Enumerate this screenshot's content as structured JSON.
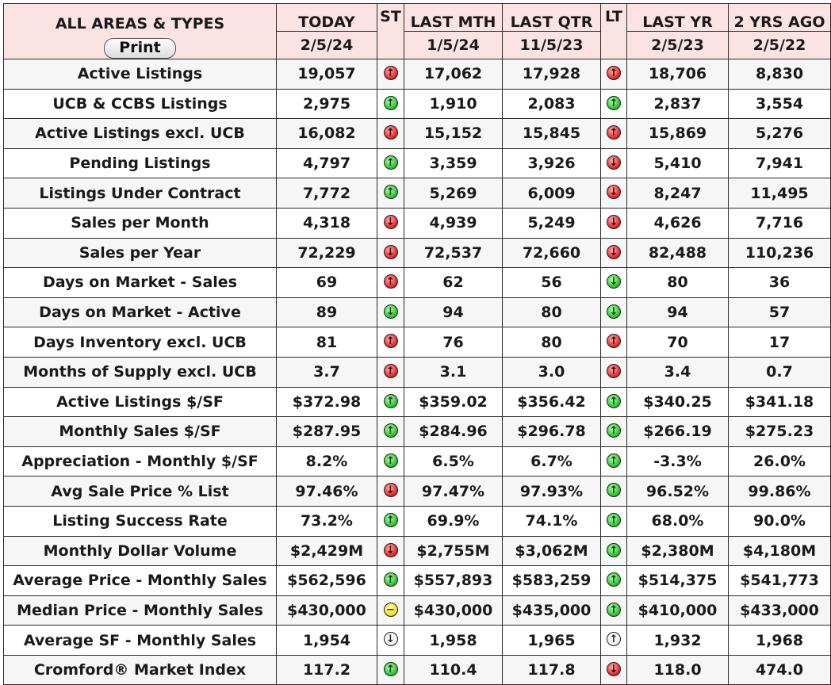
{
  "header": {
    "area_title": "ALL AREAS & TYPES",
    "print_label": "Print",
    "columns": [
      {
        "label": "TODAY",
        "date": "2/5/24"
      },
      {
        "label": "ST",
        "date": ""
      },
      {
        "label": "LAST MTH",
        "date": "1/5/24"
      },
      {
        "label": "LAST QTR",
        "date": "11/5/23"
      },
      {
        "label": "LT",
        "date": ""
      },
      {
        "label": "LAST YR",
        "date": "2/5/23"
      },
      {
        "label": "2 YRS AGO",
        "date": "2/5/22"
      }
    ]
  },
  "indicator_symbols": {
    "up-green": "↑",
    "up-red": "↑",
    "down-red": "↓",
    "down-green": "↓",
    "flat-yellow": "−",
    "up-white": "↑",
    "down-white": "↓"
  },
  "rows": [
    {
      "metric": "Active Listings",
      "today": "19,057",
      "st": "up-red",
      "last_mth": "17,062",
      "last_qtr": "17,928",
      "lt": "up-red",
      "last_yr": "18,706",
      "two_yrs": "8,830"
    },
    {
      "metric": "UCB & CCBS Listings",
      "today": "2,975",
      "st": "up-green",
      "last_mth": "1,910",
      "last_qtr": "2,083",
      "lt": "up-green",
      "last_yr": "2,837",
      "two_yrs": "3,554"
    },
    {
      "metric": "Active Listings excl. UCB",
      "today": "16,082",
      "st": "up-red",
      "last_mth": "15,152",
      "last_qtr": "15,845",
      "lt": "up-red",
      "last_yr": "15,869",
      "two_yrs": "5,276"
    },
    {
      "metric": "Pending Listings",
      "today": "4,797",
      "st": "up-green",
      "last_mth": "3,359",
      "last_qtr": "3,926",
      "lt": "down-red",
      "last_yr": "5,410",
      "two_yrs": "7,941"
    },
    {
      "metric": "Listings Under Contract",
      "today": "7,772",
      "st": "up-green",
      "last_mth": "5,269",
      "last_qtr": "6,009",
      "lt": "down-red",
      "last_yr": "8,247",
      "two_yrs": "11,495"
    },
    {
      "metric": "Sales per Month",
      "today": "4,318",
      "st": "down-red",
      "last_mth": "4,939",
      "last_qtr": "5,249",
      "lt": "down-red",
      "last_yr": "4,626",
      "two_yrs": "7,716"
    },
    {
      "metric": "Sales per Year",
      "today": "72,229",
      "st": "down-red",
      "last_mth": "72,537",
      "last_qtr": "72,660",
      "lt": "down-red",
      "last_yr": "82,488",
      "two_yrs": "110,236"
    },
    {
      "metric": "Days on Market - Sales",
      "today": "69",
      "st": "up-red",
      "last_mth": "62",
      "last_qtr": "56",
      "lt": "down-green",
      "last_yr": "80",
      "two_yrs": "36"
    },
    {
      "metric": "Days on Market - Active",
      "today": "89",
      "st": "down-green",
      "last_mth": "94",
      "last_qtr": "80",
      "lt": "down-green",
      "last_yr": "94",
      "two_yrs": "57"
    },
    {
      "metric": "Days Inventory excl. UCB",
      "today": "81",
      "st": "up-red",
      "last_mth": "76",
      "last_qtr": "80",
      "lt": "up-red",
      "last_yr": "70",
      "two_yrs": "17"
    },
    {
      "metric": "Months of Supply excl. UCB",
      "today": "3.7",
      "st": "up-red",
      "last_mth": "3.1",
      "last_qtr": "3.0",
      "lt": "up-red",
      "last_yr": "3.4",
      "two_yrs": "0.7"
    },
    {
      "metric": "Active Listings $/SF",
      "today": "$372.98",
      "st": "up-green",
      "last_mth": "$359.02",
      "last_qtr": "$356.42",
      "lt": "up-green",
      "last_yr": "$340.25",
      "two_yrs": "$341.18"
    },
    {
      "metric": "Monthly Sales $/SF",
      "today": "$287.95",
      "st": "up-green",
      "last_mth": "$284.96",
      "last_qtr": "$296.78",
      "lt": "up-green",
      "last_yr": "$266.19",
      "two_yrs": "$275.23"
    },
    {
      "metric": "Appreciation - Monthly $/SF",
      "today": "8.2%",
      "st": "up-green",
      "last_mth": "6.5%",
      "last_qtr": "6.7%",
      "lt": "up-green",
      "last_yr": "-3.3%",
      "two_yrs": "26.0%"
    },
    {
      "metric": "Avg Sale Price % List",
      "today": "97.46%",
      "st": "down-red",
      "last_mth": "97.47%",
      "last_qtr": "97.93%",
      "lt": "up-green",
      "last_yr": "96.52%",
      "two_yrs": "99.86%"
    },
    {
      "metric": "Listing Success Rate",
      "today": "73.2%",
      "st": "up-green",
      "last_mth": "69.9%",
      "last_qtr": "74.1%",
      "lt": "up-green",
      "last_yr": "68.0%",
      "two_yrs": "90.0%"
    },
    {
      "metric": "Monthly Dollar Volume",
      "today": "$2,429M",
      "st": "down-red",
      "last_mth": "$2,755M",
      "last_qtr": "$3,062M",
      "lt": "up-green",
      "last_yr": "$2,380M",
      "two_yrs": "$4,180M"
    },
    {
      "metric": "Average Price - Monthly Sales",
      "today": "$562,596",
      "st": "up-green",
      "last_mth": "$557,893",
      "last_qtr": "$583,259",
      "lt": "up-green",
      "last_yr": "$514,375",
      "two_yrs": "$541,773"
    },
    {
      "metric": "Median Price - Monthly Sales",
      "today": "$430,000",
      "st": "flat-yellow",
      "last_mth": "$430,000",
      "last_qtr": "$435,000",
      "lt": "up-green",
      "last_yr": "$410,000",
      "two_yrs": "$433,000"
    },
    {
      "metric": "Average SF - Monthly Sales",
      "today": "1,954",
      "st": "down-white",
      "last_mth": "1,958",
      "last_qtr": "1,965",
      "lt": "up-white",
      "last_yr": "1,932",
      "two_yrs": "1,968"
    },
    {
      "metric": "Cromford® Market Index",
      "today": "117.2",
      "st": "up-green",
      "last_mth": "110.4",
      "last_qtr": "117.8",
      "lt": "down-red",
      "last_yr": "118.0",
      "two_yrs": "474.0"
    }
  ]
}
